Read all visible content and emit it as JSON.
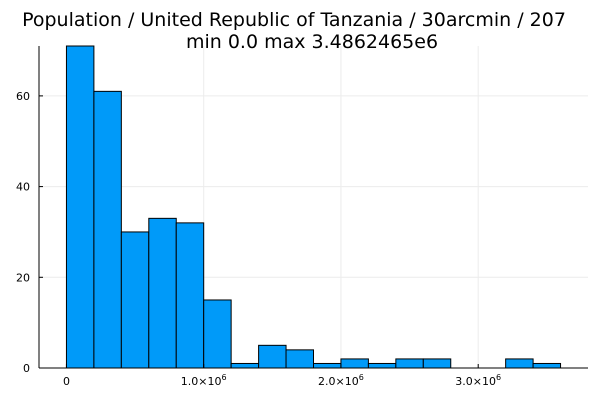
{
  "chart_data": {
    "type": "bar",
    "title": "Population / United Republic of Tanzania / 30arcmin / 207",
    "subtitle": "min 0.0  max 3.4862465e6",
    "xlabel": "",
    "ylabel": "",
    "bin_width": 200000,
    "x": [
      0,
      200000,
      400000,
      600000,
      800000,
      1000000,
      1200000,
      1400000,
      1600000,
      1800000,
      2000000,
      2200000,
      2400000,
      2600000,
      2800000,
      3000000,
      3200000,
      3400000
    ],
    "values": [
      71,
      61,
      30,
      33,
      32,
      15,
      1,
      5,
      4,
      1,
      2,
      1,
      2,
      2,
      0,
      0,
      2,
      1
    ],
    "xlim": [
      -200000,
      3800000
    ],
    "ylim": [
      0,
      71
    ],
    "x_ticks": [
      {
        "value": 0,
        "label": "0"
      },
      {
        "value": 1000000,
        "label": "1.0×10",
        "exp": "6"
      },
      {
        "value": 2000000,
        "label": "2.0×10",
        "exp": "6"
      },
      {
        "value": 3000000,
        "label": "3.0×10",
        "exp": "6"
      }
    ],
    "y_ticks": [
      {
        "value": 0,
        "label": "0"
      },
      {
        "value": 20,
        "label": "20"
      },
      {
        "value": 40,
        "label": "40"
      },
      {
        "value": 60,
        "label": "60"
      }
    ],
    "grid": true,
    "legend": "none",
    "colors": {
      "bar_fill": "#009af9",
      "bar_stroke": "#000000",
      "grid": "#ececec",
      "axis": "#000000"
    }
  }
}
